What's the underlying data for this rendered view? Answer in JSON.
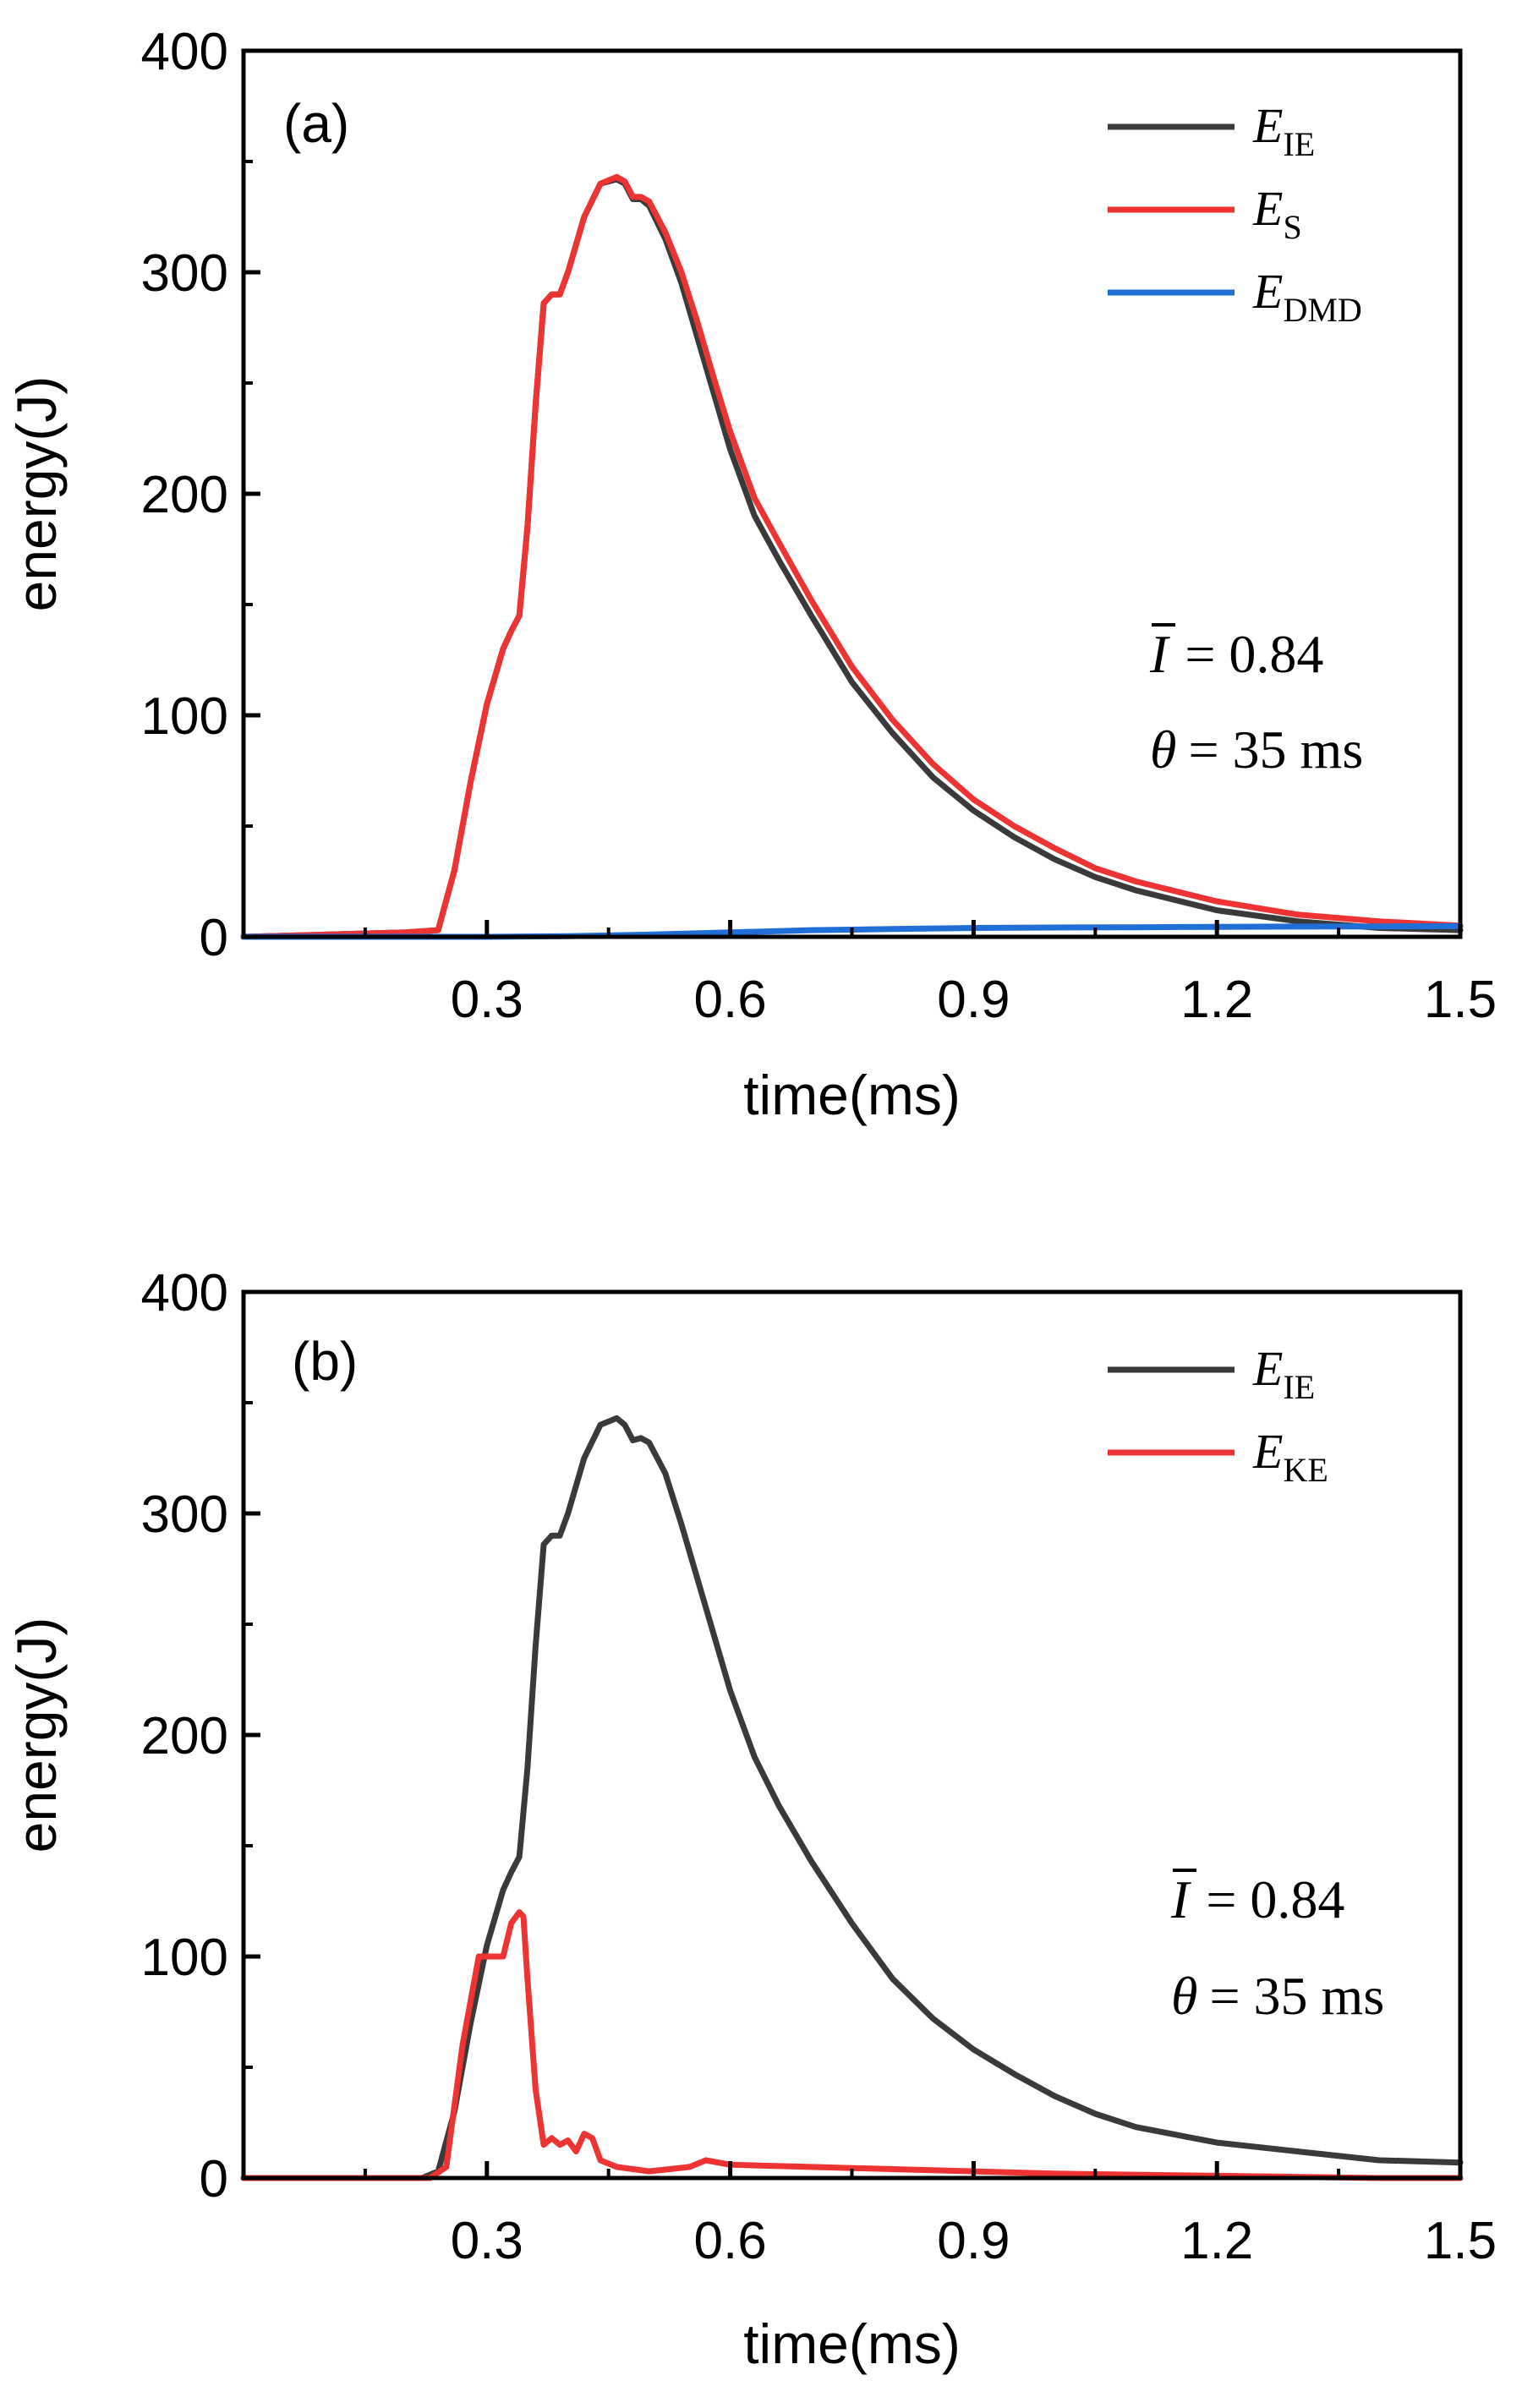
{
  "chart_data": [
    {
      "type": "line",
      "panel_label": "(a)",
      "xlabel": "time(ms)",
      "ylabel": "energy(J)",
      "xlim": [
        0,
        1.5
      ],
      "ylim": [
        0,
        400
      ],
      "xticks": [
        "0.3",
        "0.6",
        "0.9",
        "1.2",
        "1.5"
      ],
      "yticks": [
        "0",
        "100",
        "200",
        "300",
        "400"
      ],
      "legend_position": "top-right",
      "annotation": {
        "line1": {
          "sym": "I",
          "rest": "= 0.84"
        },
        "line2": {
          "sym": "θ",
          "rest": "= 35 ms"
        }
      },
      "series": [
        {
          "name": "E",
          "sub": "IE",
          "color": "#3a3a3a",
          "x": [
            0,
            0.1,
            0.2,
            0.24,
            0.26,
            0.28,
            0.3,
            0.32,
            0.33,
            0.34,
            0.35,
            0.36,
            0.37,
            0.38,
            0.39,
            0.4,
            0.42,
            0.44,
            0.46,
            0.47,
            0.48,
            0.49,
            0.5,
            0.52,
            0.54,
            0.56,
            0.58,
            0.6,
            0.63,
            0.66,
            0.7,
            0.75,
            0.8,
            0.85,
            0.9,
            0.95,
            1.0,
            1.05,
            1.1,
            1.2,
            1.3,
            1.4,
            1.5
          ],
          "y": [
            0,
            1,
            2,
            3,
            30,
            70,
            105,
            130,
            138,
            145,
            185,
            240,
            286,
            290,
            290,
            300,
            325,
            340,
            342,
            340,
            333,
            333,
            330,
            315,
            295,
            270,
            245,
            220,
            190,
            170,
            145,
            115,
            92,
            72,
            57,
            45,
            35,
            27,
            21,
            12,
            7,
            4,
            3
          ]
        },
        {
          "name": "E",
          "sub": "S",
          "color": "#ee3333",
          "x": [
            0,
            0.1,
            0.2,
            0.24,
            0.26,
            0.28,
            0.3,
            0.32,
            0.33,
            0.34,
            0.35,
            0.36,
            0.37,
            0.38,
            0.39,
            0.4,
            0.42,
            0.44,
            0.46,
            0.47,
            0.48,
            0.49,
            0.5,
            0.52,
            0.54,
            0.56,
            0.58,
            0.6,
            0.63,
            0.66,
            0.7,
            0.75,
            0.8,
            0.85,
            0.9,
            0.95,
            1.0,
            1.05,
            1.1,
            1.2,
            1.3,
            1.4,
            1.5
          ],
          "y": [
            0,
            1,
            2,
            3,
            30,
            70,
            105,
            130,
            138,
            145,
            185,
            240,
            286,
            290,
            290,
            300,
            325,
            340,
            343,
            341,
            334,
            334,
            332,
            318,
            300,
            277,
            252,
            228,
            198,
            178,
            152,
            122,
            98,
            78,
            62,
            50,
            40,
            31,
            25,
            16,
            10,
            7,
            5
          ]
        },
        {
          "name": "E",
          "sub": "DMD",
          "color": "#1f6fd6",
          "x": [
            0,
            0.3,
            0.4,
            0.5,
            0.6,
            0.7,
            0.8,
            0.9,
            1.0,
            1.1,
            1.2,
            1.3,
            1.4,
            1.5
          ],
          "y": [
            0,
            0,
            0.3,
            1,
            2,
            3,
            3.5,
            4,
            4.2,
            4.3,
            4.5,
            4.6,
            4.7,
            4.8
          ]
        }
      ]
    },
    {
      "type": "line",
      "panel_label": "(b)",
      "xlabel": "time(ms)",
      "ylabel": "energy(J)",
      "xlim": [
        0,
        1.5
      ],
      "ylim": [
        0,
        400
      ],
      "xticks": [
        "0.3",
        "0.6",
        "0.9",
        "1.2",
        "1.5"
      ],
      "yticks": [
        "0",
        "100",
        "200",
        "300",
        "400"
      ],
      "legend_position": "top-right",
      "annotation": {
        "line1": {
          "sym": "I",
          "rest": "= 0.84"
        },
        "line2": {
          "sym": "θ",
          "rest": "= 35 ms"
        }
      },
      "series": [
        {
          "name": "E",
          "sub": "IE",
          "color": "#3a3a3a",
          "x": [
            0,
            0.1,
            0.2,
            0.22,
            0.24,
            0.26,
            0.28,
            0.3,
            0.32,
            0.33,
            0.34,
            0.35,
            0.36,
            0.37,
            0.38,
            0.39,
            0.4,
            0.42,
            0.44,
            0.46,
            0.47,
            0.48,
            0.49,
            0.5,
            0.52,
            0.54,
            0.56,
            0.58,
            0.6,
            0.63,
            0.66,
            0.7,
            0.75,
            0.8,
            0.85,
            0.9,
            0.95,
            1.0,
            1.05,
            1.1,
            1.2,
            1.3,
            1.4,
            1.5
          ],
          "y": [
            0,
            0,
            0,
            0,
            3,
            30,
            70,
            105,
            130,
            138,
            145,
            185,
            240,
            286,
            290,
            290,
            300,
            325,
            340,
            343,
            340,
            333,
            334,
            332,
            318,
            295,
            270,
            245,
            220,
            190,
            168,
            143,
            115,
            90,
            72,
            58,
            47,
            37,
            29,
            23,
            16,
            12,
            8,
            7
          ]
        },
        {
          "name": "E",
          "sub": "KE",
          "color": "#ee3333",
          "x": [
            0,
            0.1,
            0.2,
            0.23,
            0.25,
            0.27,
            0.29,
            0.31,
            0.32,
            0.33,
            0.34,
            0.345,
            0.35,
            0.36,
            0.37,
            0.38,
            0.39,
            0.4,
            0.41,
            0.42,
            0.43,
            0.44,
            0.46,
            0.5,
            0.55,
            0.57,
            0.6,
            0.7,
            0.8,
            0.9,
            1.0,
            1.2,
            1.4,
            1.5
          ],
          "y": [
            0,
            0,
            0,
            0,
            5,
            60,
            100,
            100,
            100,
            115,
            120,
            118,
            90,
            40,
            15,
            18,
            15,
            17,
            12,
            20,
            18,
            8,
            5,
            3,
            5,
            8,
            6,
            5,
            4,
            3,
            2,
            1,
            0,
            0
          ]
        }
      ]
    }
  ]
}
